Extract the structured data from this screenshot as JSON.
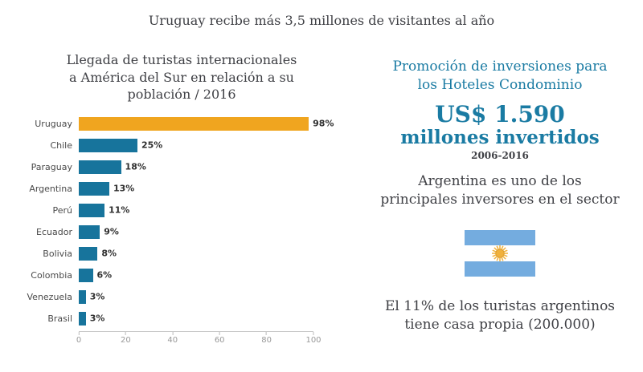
{
  "page": {
    "title": "Uruguay recibe más 3,5 millones de visitantes al año"
  },
  "colors": {
    "accent_orange": "#F0A51F",
    "bar_teal": "#17749C",
    "heading_blue": "#1A7BA3",
    "text_dark": "#3F4045",
    "flag_blue": "#74ACDF",
    "flag_white": "#FFFFFF",
    "sun_gold": "#F0B13C"
  },
  "chart_data": {
    "type": "bar",
    "orientation": "horizontal",
    "title": "Llegada de turistas internacionales a América del Sur en relación a su población / 2016",
    "title_lines": [
      "Llegada de turistas internacionales",
      "a América del Sur en relación a su",
      "población / 2016"
    ],
    "categories": [
      "Uruguay",
      "Chile",
      "Paraguay",
      "Argentina",
      "Perú",
      "Ecuador",
      "Bolivia",
      "Colombia",
      "Venezuela",
      "Brasil"
    ],
    "values": [
      98,
      25,
      18,
      13,
      11,
      9,
      8,
      6,
      3,
      3
    ],
    "value_labels": [
      "98%",
      "25%",
      "18%",
      "13%",
      "11%",
      "9%",
      "8%",
      "6%",
      "3%",
      "3%"
    ],
    "xlabel": "",
    "ylabel": "",
    "xlim": [
      0,
      100
    ],
    "x_ticks": [
      0,
      20,
      40,
      60,
      80,
      100
    ],
    "grid": false,
    "legend": false,
    "highlight_index": 0,
    "highlight_color": "#F0A51F",
    "bar_color": "#17749C"
  },
  "right_panel": {
    "promo_lines": [
      "Promoción de inversiones para",
      "los Hoteles Condominio"
    ],
    "invest_amount": "US$ 1.590",
    "invest_label": "millones invertidos",
    "invest_period": "2006-2016",
    "argentina_lines": [
      "Argentina es uno de los",
      "principales inversores en el sector"
    ],
    "flag": {
      "icon": "argentina-flag",
      "stripe_colors": [
        "#74ACDF",
        "#FFFFFF",
        "#74ACDF"
      ],
      "sun_color": "#F0B13C"
    },
    "bottom_lines": [
      "El 11% de los turistas argentinos",
      "tiene casa propia  (200.000)"
    ]
  }
}
